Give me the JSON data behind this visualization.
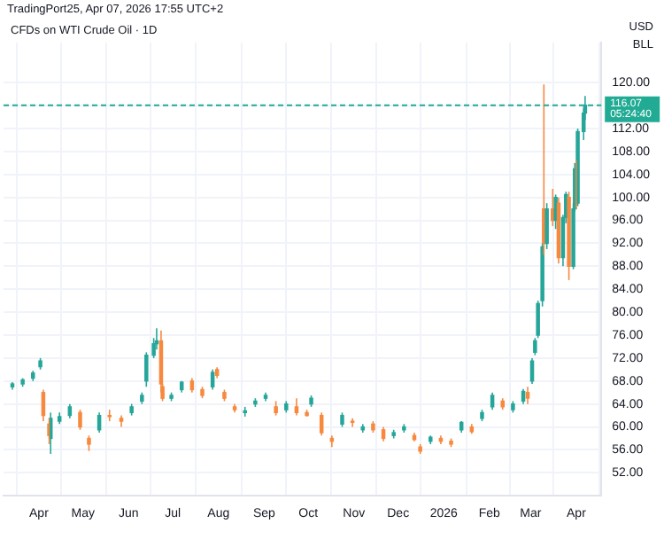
{
  "chart_data": {
    "type": "candlestick",
    "title": "CFDs on WTI Crude Oil · 1D",
    "annotations": [
      "TradingPort25, Apr 07, 2026 17:55 UTC+2",
      "USD",
      "BLL",
      "05:24:40"
    ],
    "x": [
      "2025-03-14",
      "2025-03-21",
      "2025-03-28",
      "2025-04-02",
      "2025-04-04",
      "2025-04-08",
      "2025-04-09",
      "2025-04-15",
      "2025-04-22",
      "2025-04-29",
      "2025-05-05",
      "2025-05-12",
      "2025-05-19",
      "2025-05-27",
      "2025-06-03",
      "2025-06-10",
      "2025-06-13",
      "2025-06-18",
      "2025-06-20",
      "2025-06-23",
      "2025-06-24",
      "2025-06-30",
      "2025-07-07",
      "2025-07-14",
      "2025-07-21",
      "2025-07-28",
      "2025-07-31",
      "2025-08-05",
      "2025-08-12",
      "2025-08-19",
      "2025-08-26",
      "2025-09-02",
      "2025-09-09",
      "2025-09-16",
      "2025-09-23",
      "2025-09-30",
      "2025-10-03",
      "2025-10-10",
      "2025-10-17",
      "2025-10-24",
      "2025-10-31",
      "2025-11-07",
      "2025-11-14",
      "2025-11-21",
      "2025-11-28",
      "2025-12-05",
      "2025-12-12",
      "2025-12-16",
      "2025-12-23",
      "2025-12-30",
      "2026-01-06",
      "2026-01-13",
      "2026-01-20",
      "2026-01-27",
      "2026-02-03",
      "2026-02-10",
      "2026-02-17",
      "2026-02-24",
      "2026-02-27",
      "2026-03-02",
      "2026-03-04",
      "2026-03-06",
      "2026-03-09",
      "2026-03-10",
      "2026-03-12",
      "2026-03-16",
      "2026-03-18",
      "2026-03-20",
      "2026-03-23",
      "2026-03-25",
      "2026-03-27",
      "2026-03-30",
      "2026-03-31",
      "2026-04-01",
      "2026-04-02",
      "2026-04-06",
      "2026-04-07"
    ],
    "ohlc": [
      [
        67.0,
        67.8,
        66.5,
        67.5
      ],
      [
        67.5,
        68.5,
        67.0,
        68.2
      ],
      [
        68.5,
        69.8,
        68.0,
        69.4
      ],
      [
        70.5,
        72.0,
        70.0,
        71.5
      ],
      [
        66.0,
        66.5,
        61.0,
        62.0
      ],
      [
        60.5,
        61.5,
        57.0,
        58.5
      ],
      [
        58.0,
        62.5,
        55.3,
        61.5
      ],
      [
        61.0,
        62.5,
        60.5,
        61.8
      ],
      [
        62.0,
        64.0,
        61.5,
        63.5
      ],
      [
        62.5,
        63.0,
        59.5,
        60.0
      ],
      [
        58.0,
        58.5,
        55.8,
        57.0
      ],
      [
        59.5,
        62.5,
        59.0,
        62.0
      ],
      [
        62.0,
        63.0,
        61.0,
        61.8
      ],
      [
        61.5,
        62.0,
        60.0,
        61.0
      ],
      [
        62.5,
        64.0,
        62.0,
        63.5
      ],
      [
        64.5,
        66.0,
        64.0,
        65.5
      ],
      [
        68.0,
        73.0,
        67.0,
        72.5
      ],
      [
        72.5,
        75.5,
        72.0,
        74.5
      ],
      [
        74.5,
        77.2,
        73.5,
        75.0
      ],
      [
        75.0,
        76.8,
        66.0,
        67.5
      ],
      [
        67.0,
        67.5,
        64.5,
        65.0
      ],
      [
        65.0,
        66.0,
        64.5,
        65.5
      ],
      [
        66.5,
        68.0,
        66.0,
        67.8
      ],
      [
        68.0,
        68.5,
        66.0,
        66.5
      ],
      [
        66.5,
        67.0,
        65.0,
        65.5
      ],
      [
        67.0,
        70.0,
        66.5,
        69.5
      ],
      [
        70.0,
        70.4,
        68.5,
        69.0
      ],
      [
        66.0,
        66.5,
        64.5,
        65.0
      ],
      [
        63.5,
        64.0,
        62.5,
        63.0
      ],
      [
        62.5,
        63.5,
        61.8,
        62.8
      ],
      [
        64.0,
        65.0,
        63.5,
        64.5
      ],
      [
        65.0,
        66.0,
        64.5,
        65.5
      ],
      [
        63.5,
        64.5,
        62.0,
        62.5
      ],
      [
        63.0,
        64.5,
        62.5,
        64.0
      ],
      [
        63.5,
        65.0,
        62.0,
        62.5
      ],
      [
        62.5,
        63.0,
        61.8,
        62.0
      ],
      [
        64.0,
        65.5,
        63.5,
        65.0
      ],
      [
        62.0,
        62.5,
        58.5,
        59.0
      ],
      [
        58.0,
        58.5,
        56.5,
        57.5
      ],
      [
        60.5,
        62.5,
        60.0,
        62.0
      ],
      [
        61.0,
        61.5,
        60.0,
        60.8
      ],
      [
        59.5,
        60.5,
        59.0,
        60.0
      ],
      [
        60.5,
        61.0,
        59.0,
        59.5
      ],
      [
        59.5,
        60.0,
        57.5,
        58.0
      ],
      [
        58.5,
        59.5,
        58.0,
        59.0
      ],
      [
        59.5,
        60.5,
        59.0,
        60.0
      ],
      [
        58.5,
        59.0,
        57.5,
        57.8
      ],
      [
        56.5,
        57.0,
        55.3,
        55.8
      ],
      [
        57.5,
        58.5,
        57.0,
        58.2
      ],
      [
        58.0,
        58.5,
        57.0,
        57.5
      ],
      [
        57.5,
        58.0,
        56.5,
        57.0
      ],
      [
        59.5,
        61.0,
        59.0,
        60.8
      ],
      [
        60.0,
        60.5,
        58.8,
        59.2
      ],
      [
        61.5,
        63.0,
        61.0,
        62.5
      ],
      [
        63.5,
        66.0,
        63.0,
        65.5
      ],
      [
        64.5,
        65.0,
        63.0,
        63.5
      ],
      [
        63.0,
        64.5,
        62.5,
        64.0
      ],
      [
        64.5,
        66.6,
        64.0,
        66.2
      ],
      [
        66.0,
        67.0,
        64.0,
        65.0
      ],
      [
        68.0,
        72.0,
        67.5,
        71.5
      ],
      [
        73.0,
        75.5,
        72.5,
        75.0
      ],
      [
        76.0,
        82.0,
        75.5,
        81.5
      ],
      [
        82.0,
        92.0,
        81.0,
        91.4
      ],
      [
        98.0,
        119.7,
        90.0,
        92.0
      ],
      [
        92.0,
        99.0,
        91.0,
        98.0
      ],
      [
        98.0,
        101.5,
        95.0,
        96.0
      ],
      [
        96.0,
        100.5,
        94.5,
        100.0
      ],
      [
        99.0,
        100.0,
        88.5,
        89.5
      ],
      [
        89.5,
        97.0,
        88.0,
        96.5
      ],
      [
        96.5,
        101.0,
        95.5,
        100.5
      ],
      [
        100.0,
        101.0,
        85.6,
        88.0
      ],
      [
        88.0,
        99.0,
        87.5,
        98.0
      ],
      [
        98.0,
        106.0,
        97.5,
        105.0
      ],
      [
        105.0,
        106.5,
        98.0,
        99.0
      ],
      [
        99.0,
        112.0,
        98.5,
        111.5
      ],
      [
        111.5,
        115.5,
        110.0,
        114.7
      ],
      [
        114.7,
        117.7,
        113.5,
        116.07
      ]
    ],
    "xlim": [
      "2025-03-08",
      "2026-04-18"
    ],
    "xticks": [
      {
        "value": "2025-04-01",
        "label": "Apr"
      },
      {
        "value": "2025-05-01",
        "label": "May"
      },
      {
        "value": "2025-06-01",
        "label": "Jun"
      },
      {
        "value": "2025-07-01",
        "label": "Jul"
      },
      {
        "value": "2025-08-01",
        "label": "Aug"
      },
      {
        "value": "2025-09-01",
        "label": "Sep"
      },
      {
        "value": "2025-10-01",
        "label": "Oct"
      },
      {
        "value": "2025-11-01",
        "label": "Nov"
      },
      {
        "value": "2025-12-01",
        "label": "Dec"
      },
      {
        "value": "2026-01-01",
        "label": "2026"
      },
      {
        "value": "2026-02-01",
        "label": "Feb"
      },
      {
        "value": "2026-03-01",
        "label": "Mar"
      },
      {
        "value": "2026-04-01",
        "label": "Apr"
      }
    ],
    "ylim": [
      48,
      127
    ],
    "yticks": [
      {
        "value": 52,
        "label": "52.00"
      },
      {
        "value": 56,
        "label": "56.00"
      },
      {
        "value": 60,
        "label": "60.00"
      },
      {
        "value": 64,
        "label": "64.00"
      },
      {
        "value": 68,
        "label": "68.00"
      },
      {
        "value": 72,
        "label": "72.00"
      },
      {
        "value": 76,
        "label": "76.00"
      },
      {
        "value": 80,
        "label": "80.00"
      },
      {
        "value": 84,
        "label": "84.00"
      },
      {
        "value": 88,
        "label": "88.00"
      },
      {
        "value": 92,
        "label": "92.00"
      },
      {
        "value": 96,
        "label": "96.00"
      },
      {
        "value": 100,
        "label": "100.00"
      },
      {
        "value": 104,
        "label": "104.00"
      },
      {
        "value": 108,
        "label": "108.00"
      },
      {
        "value": 112,
        "label": "112.00"
      },
      {
        "value": 116,
        "label": null
      },
      {
        "value": 120,
        "label": "120.00"
      }
    ],
    "ref_lines": [
      {
        "axis": "y",
        "value": 116.07,
        "label": "116.07",
        "color": "#22ab94",
        "line_style": "dashed"
      }
    ],
    "grid": true,
    "legend": false
  }
}
